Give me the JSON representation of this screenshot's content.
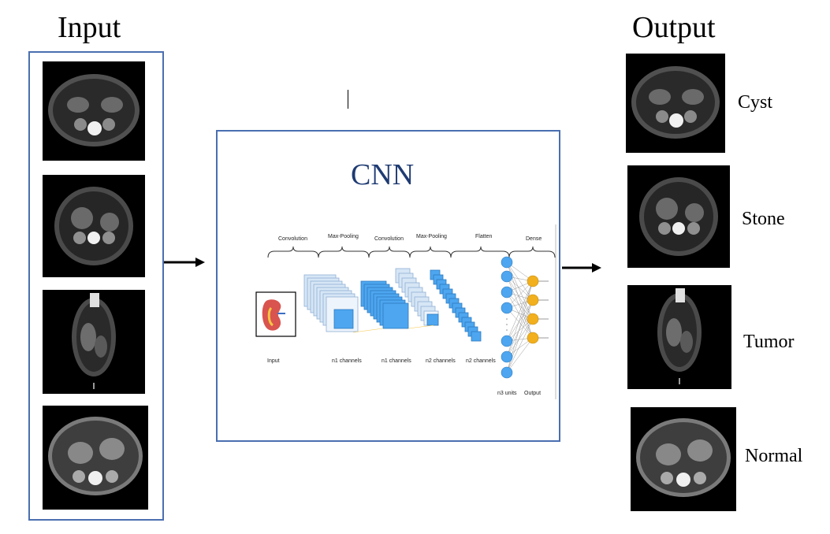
{
  "titles": {
    "input": "Input",
    "output": "Output",
    "cnn": "CNN"
  },
  "cnn_diagram": {
    "layer_labels": [
      "Convolution",
      "Max-Pooling",
      "Convolution",
      "Max-Pooling",
      "Flatten",
      "Dense"
    ],
    "channel_labels": [
      "Input",
      "n1 channels",
      "n1 channels",
      "n2 channels",
      "n2 channels",
      "n3 units",
      "Output"
    ]
  },
  "output_classes": [
    "Cyst",
    "Stone",
    "Tumor",
    "Normal"
  ],
  "colors": {
    "box_border": "#4a6fb0",
    "cnn_title": "#1f3b73",
    "feature_blue": "#4da6ef",
    "feature_light": "#d6e6f5",
    "dense_node": "#4da6ef",
    "output_node": "#f2b01e"
  },
  "icons": [
    "arrow-right-icon",
    "kidney-icon"
  ]
}
